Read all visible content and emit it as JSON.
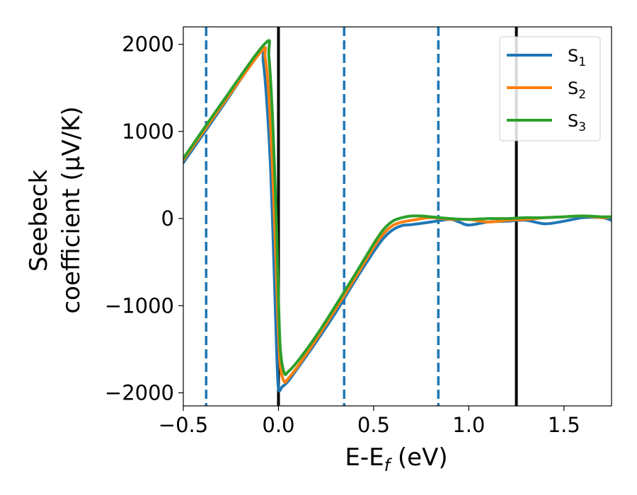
{
  "chart_data": {
    "type": "line",
    "xlabel": "E-E",
    "xlabel_sub": "f",
    "xlabel_unit": " (eV)",
    "ylabel_line1": "Seebeck",
    "ylabel_line2": "coefficient  (μV/K)",
    "xlim": [
      -0.5,
      1.75
    ],
    "ylim": [
      -2150,
      2200
    ],
    "x_ticks": [
      -0.5,
      0.0,
      0.5,
      1.0,
      1.5
    ],
    "x_tick_labels": [
      "−0.5",
      "0.0",
      "0.5",
      "1.0",
      "1.5"
    ],
    "y_ticks": [
      2000,
      1000,
      0,
      -1000,
      -2000
    ],
    "y_tick_labels": [
      "2000",
      "1000",
      "0",
      "−1000",
      "−2000"
    ],
    "grid": false,
    "legend_position": "top-right",
    "vertical_lines": [
      {
        "x": -0.38,
        "style": "dashed",
        "color": "#1f77b4"
      },
      {
        "x": 0.0,
        "style": "solid",
        "color": "#000000"
      },
      {
        "x": 0.345,
        "style": "dashed",
        "color": "#1f77b4"
      },
      {
        "x": 0.84,
        "style": "dashed",
        "color": "#1f77b4"
      },
      {
        "x": 1.25,
        "style": "solid",
        "color": "#000000"
      }
    ],
    "series": [
      {
        "name": "S",
        "name_sub": "1",
        "color": "#1f77b4",
        "x": [
          -0.5,
          -0.3,
          -0.1,
          -0.08,
          -0.06,
          -0.04,
          -0.02,
          -0.01,
          0.0,
          0.02,
          0.05,
          0.1,
          0.2,
          0.3,
          0.4,
          0.5,
          0.55,
          0.6,
          0.65,
          0.7,
          0.8,
          0.9,
          0.95,
          1.0,
          1.1,
          1.2,
          1.3,
          1.4,
          1.5,
          1.6,
          1.7,
          1.75
        ],
        "y": [
          640,
          1270,
          1900,
          1800,
          1300,
          500,
          -800,
          -1500,
          -1950,
          -1930,
          -1870,
          -1720,
          -1410,
          -1080,
          -720,
          -380,
          -230,
          -130,
          -80,
          -70,
          -40,
          -10,
          -40,
          -75,
          -40,
          -30,
          -20,
          -60,
          -30,
          10,
          10,
          -20
        ]
      },
      {
        "name": "S",
        "name_sub": "2",
        "color": "#ff7f0e",
        "x": [
          -0.5,
          -0.3,
          -0.09,
          -0.07,
          -0.05,
          -0.03,
          -0.01,
          0.0,
          0.01,
          0.03,
          0.05,
          0.1,
          0.2,
          0.3,
          0.4,
          0.5,
          0.55,
          0.6,
          0.65,
          0.7,
          0.8,
          0.9,
          1.0,
          1.1,
          1.2,
          1.3,
          1.4,
          1.5,
          1.6,
          1.7,
          1.75
        ],
        "y": [
          670,
          1290,
          1920,
          1850,
          1400,
          500,
          -700,
          -1300,
          -1700,
          -1870,
          -1840,
          -1700,
          -1380,
          -1040,
          -690,
          -330,
          -180,
          -80,
          -40,
          -20,
          10,
          -10,
          -10,
          -40,
          -20,
          -10,
          10,
          20,
          30,
          10,
          20
        ]
      },
      {
        "name": "S",
        "name_sub": "3",
        "color": "#2ca02c",
        "x": [
          -0.5,
          -0.3,
          -0.07,
          -0.05,
          -0.03,
          -0.01,
          0.0,
          0.01,
          0.03,
          0.05,
          0.1,
          0.2,
          0.3,
          0.4,
          0.5,
          0.55,
          0.6,
          0.65,
          0.7,
          0.75,
          0.8,
          0.9,
          1.0,
          1.1,
          1.2,
          1.3,
          1.4,
          1.5,
          1.6,
          1.7,
          1.75
        ],
        "y": [
          690,
          1320,
          2010,
          1850,
          1100,
          -100,
          -900,
          -1500,
          -1770,
          -1760,
          -1640,
          -1340,
          -1000,
          -650,
          -290,
          -130,
          -30,
          10,
          30,
          30,
          20,
          0,
          -10,
          0,
          0,
          10,
          10,
          20,
          30,
          20,
          20
        ]
      }
    ]
  }
}
